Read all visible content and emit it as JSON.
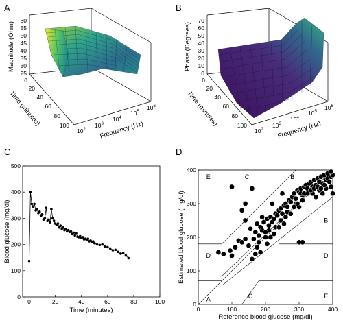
{
  "panels": {
    "A": {
      "label": "A",
      "zlabel": "Magnitude (Ohm)",
      "ylabel": "Time (minutes)",
      "xlabel": "Frequency (Hz)",
      "zticks": [
        "60",
        "55",
        "50",
        "45",
        "40",
        "35",
        "30",
        "25"
      ],
      "yticks": [
        "0",
        "20",
        "40",
        "60",
        "80",
        "100"
      ],
      "xticks": [
        {
          "base": "10",
          "exp": "2"
        },
        {
          "base": "10",
          "exp": "3"
        },
        {
          "base": "10",
          "exp": "4"
        },
        {
          "base": "10",
          "exp": "5"
        },
        {
          "base": "10",
          "exp": "6"
        }
      ]
    },
    "B": {
      "label": "B",
      "zlabel": "Phase (Degrees)",
      "ylabel": "Time (minutes)",
      "xlabel": "Frequency (Hz)",
      "zticks": [
        "70",
        "60",
        "50",
        "40",
        "30",
        "20",
        "10",
        "0"
      ],
      "yticks": [
        "0",
        "20",
        "40",
        "60",
        "80",
        "100"
      ],
      "xticks": [
        {
          "base": "10",
          "exp": "2"
        },
        {
          "base": "10",
          "exp": "3"
        },
        {
          "base": "10",
          "exp": "4"
        },
        {
          "base": "10",
          "exp": "5"
        },
        {
          "base": "10",
          "exp": "6"
        }
      ]
    },
    "C": {
      "label": "C"
    },
    "D": {
      "label": "D"
    }
  },
  "chart_data": [
    {
      "type": "surface",
      "panel": "A",
      "xlabel": "Frequency (Hz)",
      "ylabel": "Time (minutes)",
      "zlabel": "Magnitude (Ohm)",
      "xscale": "log",
      "xlim": [
        100,
        1000000
      ],
      "ylim": [
        0,
        100
      ],
      "zlim": [
        25,
        60
      ],
      "colormap": "viridis"
    },
    {
      "type": "surface",
      "panel": "B",
      "xlabel": "Frequency (Hz)",
      "ylabel": "Time (minutes)",
      "zlabel": "Phase (Degrees)",
      "xscale": "log",
      "xlim": [
        100,
        1000000
      ],
      "ylim": [
        0,
        100
      ],
      "zlim": [
        0,
        70
      ],
      "colormap": "viridis"
    },
    {
      "type": "line",
      "panel": "C",
      "xlabel": "Time (minutes)",
      "ylabel": "Blood glucose (mg/dl)",
      "xlim": [
        -5,
        100
      ],
      "ylim": [
        0,
        500
      ],
      "xticks": [
        "0",
        "20",
        "40",
        "60",
        "80",
        "100"
      ],
      "yticks": [
        "0",
        "100",
        "200",
        "300",
        "400",
        "500"
      ],
      "marker": "circle",
      "color": "#000000",
      "points": [
        [
          0,
          137
        ],
        [
          1,
          400
        ],
        [
          2,
          355
        ],
        [
          3,
          345
        ],
        [
          4,
          355
        ],
        [
          5,
          330
        ],
        [
          6,
          335
        ],
        [
          7,
          320
        ],
        [
          8,
          325
        ],
        [
          9,
          310
        ],
        [
          10,
          315
        ],
        [
          11,
          295
        ],
        [
          12,
          300
        ],
        [
          13,
          340
        ],
        [
          14,
          290
        ],
        [
          15,
          295
        ],
        [
          16,
          285
        ],
        [
          17,
          335
        ],
        [
          18,
          300
        ],
        [
          19,
          290
        ],
        [
          20,
          280
        ],
        [
          21,
          275
        ],
        [
          22,
          280
        ],
        [
          23,
          265
        ],
        [
          24,
          272
        ],
        [
          25,
          260
        ],
        [
          26,
          265
        ],
        [
          27,
          255
        ],
        [
          28,
          260
        ],
        [
          29,
          250
        ],
        [
          30,
          255
        ],
        [
          31,
          248
        ],
        [
          32,
          250
        ],
        [
          33,
          240
        ],
        [
          34,
          245
        ],
        [
          35,
          235
        ],
        [
          36,
          242
        ],
        [
          37,
          230
        ],
        [
          38,
          228
        ],
        [
          39,
          232
        ],
        [
          40,
          225
        ],
        [
          41,
          228
        ],
        [
          42,
          220
        ],
        [
          43,
          222
        ],
        [
          44,
          218
        ],
        [
          45,
          222
        ],
        [
          46,
          212
        ],
        [
          47,
          215
        ],
        [
          48,
          210
        ],
        [
          49,
          212
        ],
        [
          50,
          205
        ],
        [
          52,
          200
        ],
        [
          54,
          198
        ],
        [
          56,
          200
        ],
        [
          58,
          192
        ],
        [
          60,
          190
        ],
        [
          62,
          185
        ],
        [
          64,
          178
        ],
        [
          66,
          180
        ],
        [
          68,
          172
        ],
        [
          70,
          165
        ],
        [
          72,
          168
        ],
        [
          74,
          158
        ],
        [
          76,
          148
        ]
      ]
    },
    {
      "type": "scatter",
      "panel": "D",
      "title": "",
      "xlabel": "Reference blood glucose (mg/dl)",
      "ylabel": "Estimated blood glucose (mg/dl)",
      "xlim": [
        0,
        400
      ],
      "ylim": [
        0,
        400
      ],
      "xticks": [
        "0",
        "100",
        "200",
        "300",
        "400"
      ],
      "yticks": [
        "0",
        "100",
        "200",
        "300",
        "400"
      ],
      "zones": [
        "A",
        "B",
        "B",
        "C",
        "C",
        "D",
        "D",
        "E",
        "E"
      ],
      "marker": "circle",
      "color": "#000000",
      "points": [
        [
          60,
          155
        ],
        [
          75,
          150
        ],
        [
          95,
          160
        ],
        [
          100,
          145
        ],
        [
          110,
          170
        ],
        [
          120,
          190
        ],
        [
          130,
          185
        ],
        [
          140,
          195
        ],
        [
          150,
          175
        ],
        [
          155,
          225
        ],
        [
          165,
          195
        ],
        [
          170,
          215
        ],
        [
          175,
          240
        ],
        [
          180,
          185
        ],
        [
          185,
          230
        ],
        [
          190,
          220
        ],
        [
          195,
          245
        ],
        [
          200,
          200
        ],
        [
          205,
          255
        ],
        [
          210,
          235
        ],
        [
          215,
          260
        ],
        [
          220,
          245
        ],
        [
          225,
          255
        ],
        [
          230,
          270
        ],
        [
          235,
          265
        ],
        [
          240,
          280
        ],
        [
          245,
          285
        ],
        [
          250,
          270
        ],
        [
          255,
          295
        ],
        [
          260,
          300
        ],
        [
          265,
          290
        ],
        [
          270,
          310
        ],
        [
          275,
          305
        ],
        [
          280,
          320
        ],
        [
          285,
          330
        ],
        [
          290,
          315
        ],
        [
          295,
          340
        ],
        [
          300,
          335
        ],
        [
          305,
          345
        ],
        [
          310,
          325
        ],
        [
          315,
          350
        ],
        [
          320,
          355
        ],
        [
          325,
          345
        ],
        [
          330,
          360
        ],
        [
          335,
          365
        ],
        [
          340,
          350
        ],
        [
          345,
          370
        ],
        [
          350,
          355
        ],
        [
          355,
          375
        ],
        [
          360,
          365
        ],
        [
          365,
          380
        ],
        [
          370,
          360
        ],
        [
          375,
          385
        ],
        [
          380,
          370
        ],
        [
          385,
          375
        ],
        [
          390,
          365
        ],
        [
          395,
          380
        ],
        [
          400,
          385
        ],
        [
          130,
          280
        ],
        [
          160,
          345
        ],
        [
          100,
          350
        ],
        [
          140,
          300
        ],
        [
          175,
          170
        ],
        [
          185,
          155
        ],
        [
          160,
          135
        ],
        [
          170,
          150
        ],
        [
          140,
          250
        ],
        [
          220,
          300
        ],
        [
          250,
          330
        ],
        [
          230,
          230
        ],
        [
          260,
          260
        ],
        [
          290,
          300
        ],
        [
          300,
          290
        ],
        [
          310,
          310
        ],
        [
          340,
          330
        ],
        [
          360,
          340
        ],
        [
          380,
          345
        ],
        [
          395,
          350
        ],
        [
          400,
          330
        ],
        [
          350,
          320
        ],
        [
          370,
          330
        ],
        [
          300,
          185
        ],
        [
          310,
          185
        ],
        [
          210,
          220
        ],
        [
          240,
          230
        ],
        [
          200,
          215
        ],
        [
          190,
          260
        ],
        [
          180,
          205
        ],
        [
          205,
          180
        ],
        [
          215,
          200
        ],
        [
          225,
          210
        ],
        [
          245,
          250
        ],
        [
          255,
          240
        ],
        [
          265,
          275
        ],
        [
          275,
          270
        ],
        [
          285,
          290
        ],
        [
          295,
          300
        ],
        [
          305,
          330
        ],
        [
          315,
          330
        ],
        [
          325,
          330
        ],
        [
          335,
          340
        ],
        [
          345,
          345
        ],
        [
          355,
          350
        ],
        [
          365,
          345
        ],
        [
          375,
          355
        ],
        [
          385,
          390
        ],
        [
          395,
          395
        ]
      ]
    }
  ]
}
